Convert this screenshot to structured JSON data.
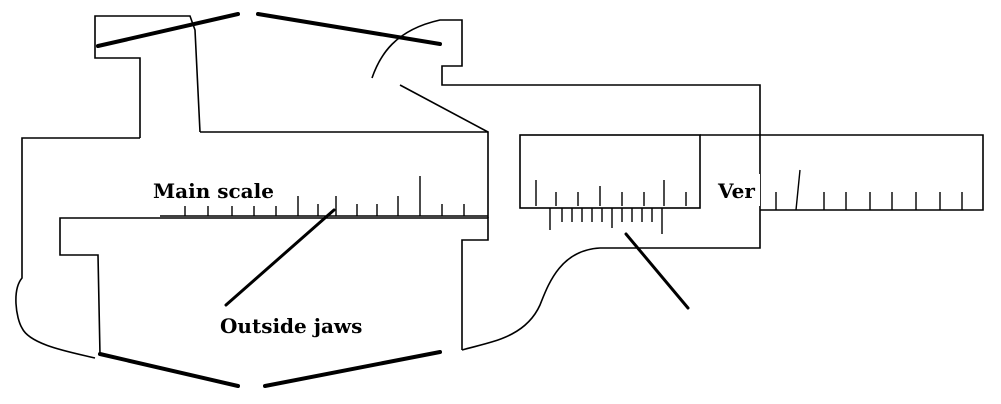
{
  "diagram": {
    "subject": "vernier caliper sketch",
    "labels": {
      "main_scale": "Main scale",
      "outside_jaws": "Outside jaws",
      "vernier_partial": "Ver"
    },
    "colors": {
      "ink": "#000000",
      "paper": "#ffffff"
    }
  }
}
